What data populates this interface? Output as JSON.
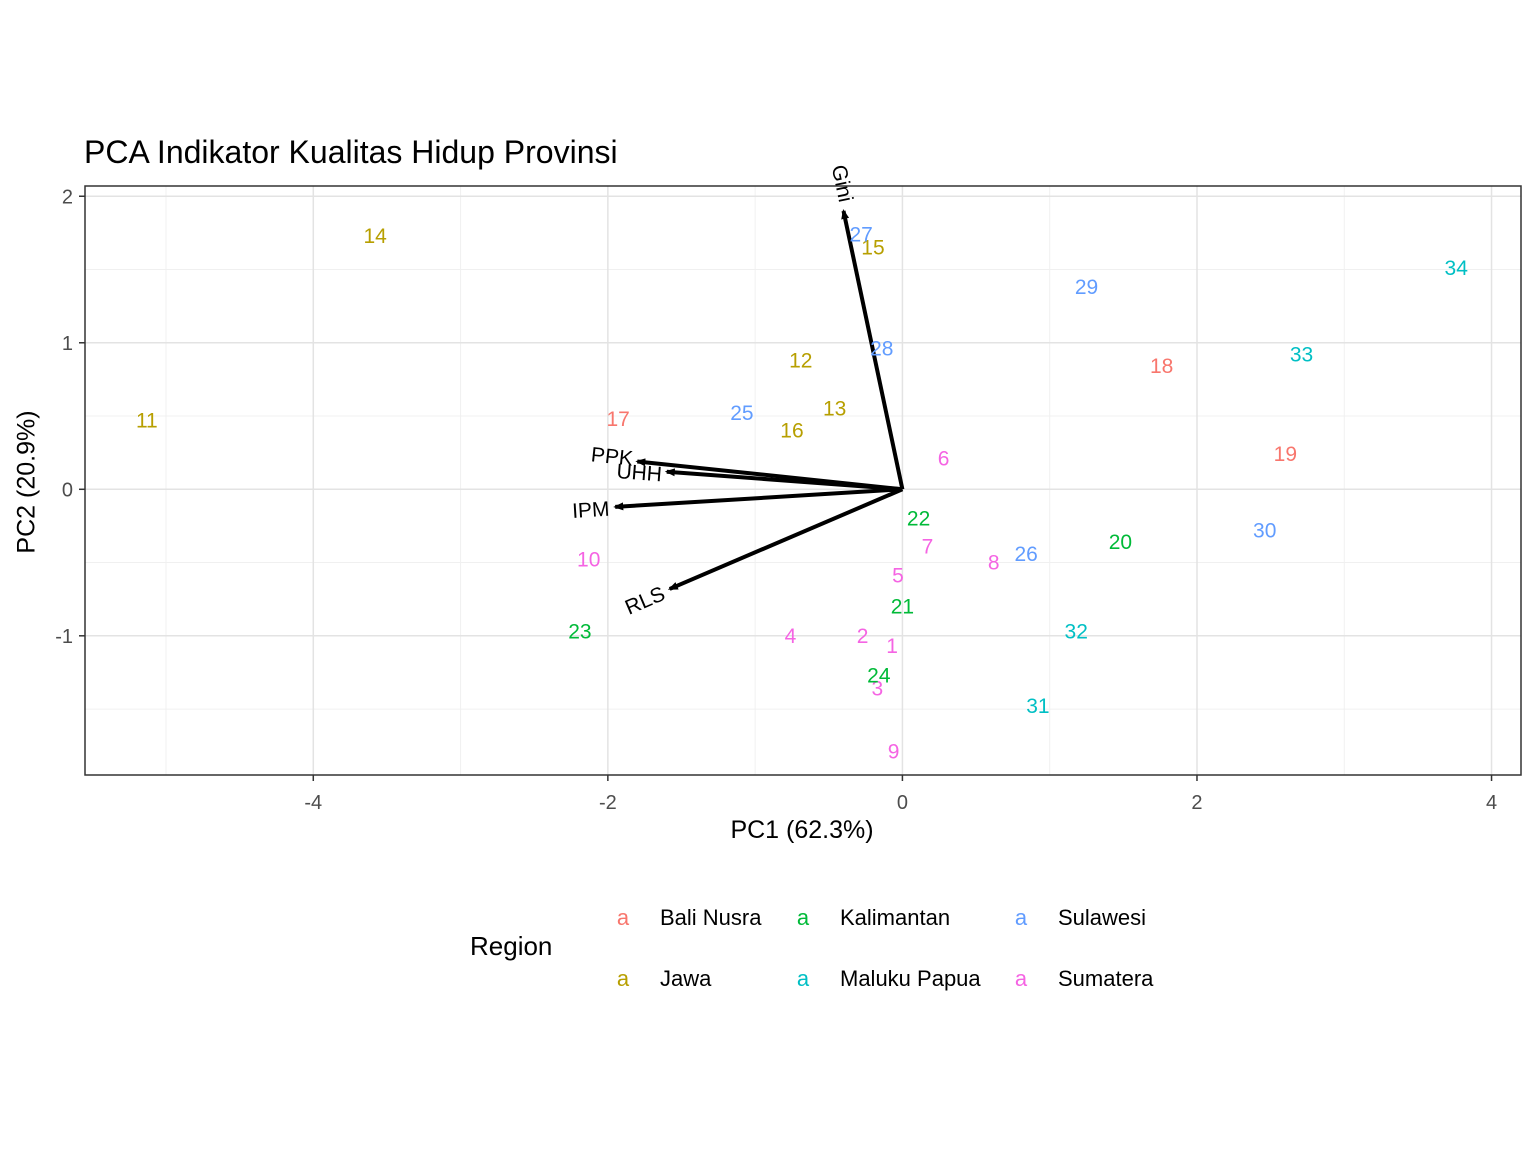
{
  "chart_data": {
    "type": "scatter",
    "title": "PCA Indikator Kualitas Hidup Provinsi",
    "xlabel": "PC1 (62.3%)",
    "ylabel": "PC2 (20.9%)",
    "xlim": [
      -5.55,
      4.2
    ],
    "ylim": [
      -1.95,
      2.07
    ],
    "x_ticks": [
      -4,
      -2,
      0,
      2,
      4
    ],
    "y_ticks": [
      -1,
      0,
      1,
      2
    ],
    "grid": true,
    "legend_position": "bottom",
    "legend": {
      "title": "Region",
      "key_glyph": "a",
      "entries": [
        {
          "name": "Bali Nusra",
          "color": "#F8766D"
        },
        {
          "name": "Kalimantan",
          "color": "#00BA38"
        },
        {
          "name": "Sulawesi",
          "color": "#619CFF"
        },
        {
          "name": "Jawa",
          "color": "#B79F00"
        },
        {
          "name": "Maluku Papua",
          "color": "#00BFC4"
        },
        {
          "name": "Sumatera",
          "color": "#F564E3"
        }
      ]
    },
    "points": [
      {
        "label": "1",
        "x": -0.07,
        "y": -1.07,
        "region": "Sumatera"
      },
      {
        "label": "2",
        "x": -0.27,
        "y": -1.0,
        "region": "Sumatera"
      },
      {
        "label": "3",
        "x": -0.17,
        "y": -1.36,
        "region": "Sumatera"
      },
      {
        "label": "4",
        "x": -0.76,
        "y": -1.0,
        "region": "Sumatera"
      },
      {
        "label": "5",
        "x": -0.03,
        "y": -0.59,
        "region": "Sumatera"
      },
      {
        "label": "6",
        "x": 0.28,
        "y": 0.21,
        "region": "Sumatera"
      },
      {
        "label": "7",
        "x": 0.17,
        "y": -0.39,
        "region": "Sumatera"
      },
      {
        "label": "8",
        "x": 0.62,
        "y": -0.5,
        "region": "Sumatera"
      },
      {
        "label": "9",
        "x": -0.06,
        "y": -1.79,
        "region": "Sumatera"
      },
      {
        "label": "10",
        "x": -2.13,
        "y": -0.48,
        "region": "Sumatera"
      },
      {
        "label": "11",
        "x": -5.13,
        "y": 0.47,
        "region": "Jawa"
      },
      {
        "label": "12",
        "x": -0.69,
        "y": 0.88,
        "region": "Jawa"
      },
      {
        "label": "13",
        "x": -0.46,
        "y": 0.55,
        "region": "Jawa"
      },
      {
        "label": "14",
        "x": -3.58,
        "y": 1.73,
        "region": "Jawa"
      },
      {
        "label": "15",
        "x": -0.2,
        "y": 1.65,
        "region": "Jawa"
      },
      {
        "label": "16",
        "x": -0.75,
        "y": 0.4,
        "region": "Jawa"
      },
      {
        "label": "17",
        "x": -1.93,
        "y": 0.48,
        "region": "Bali Nusra"
      },
      {
        "label": "18",
        "x": 1.76,
        "y": 0.84,
        "region": "Bali Nusra"
      },
      {
        "label": "19",
        "x": 2.6,
        "y": 0.24,
        "region": "Bali Nusra"
      },
      {
        "label": "20",
        "x": 1.48,
        "y": -0.36,
        "region": "Kalimantan"
      },
      {
        "label": "21",
        "x": 0.0,
        "y": -0.8,
        "region": "Kalimantan"
      },
      {
        "label": "22",
        "x": 0.11,
        "y": -0.2,
        "region": "Kalimantan"
      },
      {
        "label": "23",
        "x": -2.19,
        "y": -0.97,
        "region": "Kalimantan"
      },
      {
        "label": "24",
        "x": -0.16,
        "y": -1.27,
        "region": "Kalimantan"
      },
      {
        "label": "25",
        "x": -1.09,
        "y": 0.52,
        "region": "Sulawesi"
      },
      {
        "label": "26",
        "x": 0.84,
        "y": -0.44,
        "region": "Sulawesi"
      },
      {
        "label": "27",
        "x": -0.28,
        "y": 1.74,
        "region": "Sulawesi"
      },
      {
        "label": "28",
        "x": -0.14,
        "y": 0.96,
        "region": "Sulawesi"
      },
      {
        "label": "29",
        "x": 1.25,
        "y": 1.38,
        "region": "Sulawesi"
      },
      {
        "label": "30",
        "x": 2.46,
        "y": -0.28,
        "region": "Sulawesi"
      },
      {
        "label": "31",
        "x": 0.92,
        "y": -1.48,
        "region": "Maluku Papua"
      },
      {
        "label": "32",
        "x": 1.18,
        "y": -0.97,
        "region": "Maluku Papua"
      },
      {
        "label": "33",
        "x": 2.71,
        "y": 0.92,
        "region": "Maluku Papua"
      },
      {
        "label": "34",
        "x": 3.76,
        "y": 1.51,
        "region": "Maluku Papua"
      }
    ],
    "loadings": [
      {
        "label": "PPK",
        "x": -1.8,
        "y": 0.19
      },
      {
        "label": "UHH",
        "x": -1.6,
        "y": 0.12
      },
      {
        "label": "IPM",
        "x": -1.95,
        "y": -0.12
      },
      {
        "label": "RLS",
        "x": -1.58,
        "y": -0.68
      },
      {
        "label": "Gini",
        "x": -0.4,
        "y": 1.9
      }
    ]
  }
}
